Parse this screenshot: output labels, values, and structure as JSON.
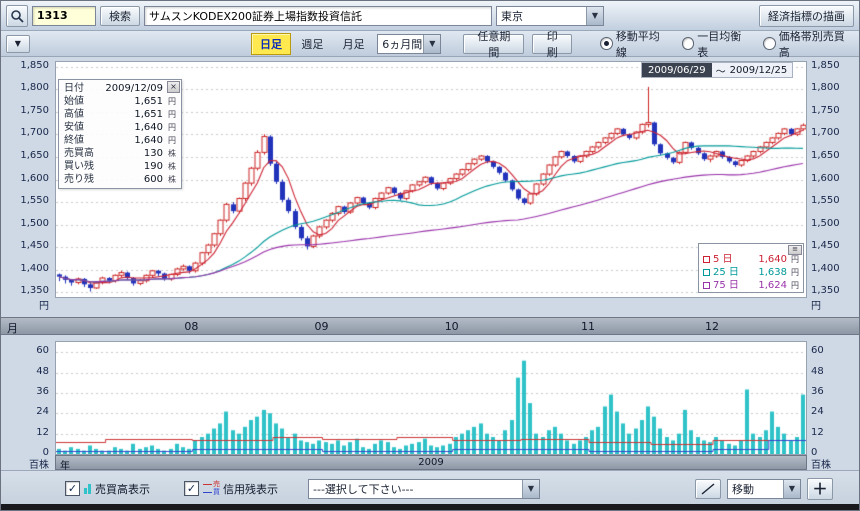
{
  "toolbar1": {
    "code_value": "1313",
    "search_label": "検索",
    "name_value": "サムスンKODEX200証券上場指数投資信託",
    "market_value": "東京",
    "econ_button_label": "経済指標の描画"
  },
  "toolbar2": {
    "tabs": [
      {
        "label": "日足",
        "selected": true
      },
      {
        "label": "週足",
        "selected": false
      },
      {
        "label": "月足",
        "selected": false
      }
    ],
    "period_value": "6ヵ月間",
    "range_button_label": "任意期間",
    "print_button_label": "印刷",
    "radios": [
      {
        "label": "移動平均線",
        "selected": true
      },
      {
        "label": "一目均衡表",
        "selected": false
      },
      {
        "label": "価格帯別売買高",
        "selected": false
      }
    ]
  },
  "chart_header": {
    "from": "2009/06/29",
    "separator": "～",
    "to": "2009/12/25"
  },
  "info_box": {
    "rows": [
      {
        "label": "日付",
        "value": "2009/12/09",
        "unit": ""
      },
      {
        "label": "始値",
        "value": "1,651",
        "unit": "円"
      },
      {
        "label": "高値",
        "value": "1,651",
        "unit": "円"
      },
      {
        "label": "安値",
        "value": "1,640",
        "unit": "円"
      },
      {
        "label": "終値",
        "value": "1,640",
        "unit": "円"
      },
      {
        "label": "売買高",
        "value": "130",
        "unit": "株"
      },
      {
        "label": "買い残",
        "value": "190",
        "unit": "株"
      },
      {
        "label": "売り残",
        "value": "600",
        "unit": "株"
      }
    ]
  },
  "ma_legend": {
    "rows": [
      {
        "label": "5 日",
        "value": "1,640",
        "unit": "円",
        "color": "#cc2233"
      },
      {
        "label": "25 日",
        "value": "1,638",
        "unit": "円",
        "color": "#009999"
      },
      {
        "label": "75 日",
        "value": "1,624",
        "unit": "円",
        "color": "#9933aa"
      }
    ]
  },
  "price_axis": {
    "labels": [
      "1,850",
      "1,800",
      "1,750",
      "1,700",
      "1,650",
      "1,600",
      "1,550",
      "1,500",
      "1,450",
      "1,400",
      "1,350"
    ],
    "values": [
      1850,
      1800,
      1750,
      1700,
      1650,
      1600,
      1550,
      1500,
      1450,
      1400,
      1350
    ],
    "unit": "円"
  },
  "volume_axis": {
    "labels": [
      "60",
      "48",
      "36",
      "24",
      "12",
      "0"
    ],
    "values": [
      60,
      48,
      36,
      24,
      12,
      0
    ],
    "unit": "百株"
  },
  "month_bar": {
    "left_label": "月"
  },
  "year_bar": {
    "left_label": "年",
    "year": "2009"
  },
  "bottom_bar": {
    "volume_checkbox_label": "売買高表示",
    "margin_checkbox_label": "信用残表示",
    "margin_icon_sell": "売",
    "margin_icon_buy": "買",
    "select_value": "---選択して下さい---",
    "move_select_value": "移動",
    "plus_button_label": "＋",
    "volume_checked": true,
    "margin_checked": true
  },
  "chart_data": {
    "type": "candlestick",
    "period": "daily",
    "title": "サムスンKODEX200証券上場指数投資信託 日足",
    "date_range": [
      "2009/06/29",
      "2009/12/25"
    ],
    "price_range": [
      1340,
      1860
    ],
    "price_gridline_step": 50,
    "volume_max": 66,
    "volume_gridline_step": 12,
    "colors": {
      "up_fill": "#ffffff",
      "up_stroke": "#cc2222",
      "down": "#2233bb",
      "volume": "#2fc2c8",
      "ma5": "#cc2233",
      "ma25": "#009999",
      "ma75": "#9933aa",
      "grid": "#c9c9c9"
    },
    "ma_periods": [
      5,
      25,
      75
    ],
    "ma_last_values": {
      "ma5": 1640,
      "ma25": 1638,
      "ma75": 1624
    },
    "candle_format": "[open, high, low, close, volume_hundreds]",
    "candles": [
      [
        1390,
        1392,
        1375,
        1385,
        3
      ],
      [
        1385,
        1388,
        1370,
        1378,
        2
      ],
      [
        1378,
        1380,
        1365,
        1372,
        4
      ],
      [
        1372,
        1383,
        1368,
        1380,
        3
      ],
      [
        1380,
        1382,
        1362,
        1368,
        2
      ],
      [
        1368,
        1372,
        1352,
        1360,
        5
      ],
      [
        1360,
        1375,
        1358,
        1372,
        3
      ],
      [
        1372,
        1385,
        1368,
        1382,
        2
      ],
      [
        1382,
        1384,
        1370,
        1376,
        2
      ],
      [
        1376,
        1390,
        1372,
        1388,
        4
      ],
      [
        1388,
        1398,
        1384,
        1394,
        3
      ],
      [
        1394,
        1396,
        1378,
        1382,
        2
      ],
      [
        1382,
        1384,
        1365,
        1370,
        6
      ],
      [
        1370,
        1380,
        1366,
        1376,
        3
      ],
      [
        1376,
        1390,
        1372,
        1388,
        4
      ],
      [
        1388,
        1400,
        1384,
        1398,
        5
      ],
      [
        1398,
        1400,
        1386,
        1392,
        3
      ],
      [
        1392,
        1394,
        1376,
        1380,
        2
      ],
      [
        1380,
        1392,
        1376,
        1390,
        3
      ],
      [
        1390,
        1405,
        1386,
        1402,
        6
      ],
      [
        1402,
        1412,
        1398,
        1408,
        4
      ],
      [
        1408,
        1410,
        1392,
        1398,
        3
      ],
      [
        1398,
        1418,
        1394,
        1415,
        8
      ],
      [
        1415,
        1440,
        1410,
        1438,
        10
      ],
      [
        1438,
        1458,
        1432,
        1455,
        12
      ],
      [
        1455,
        1482,
        1450,
        1480,
        15
      ],
      [
        1480,
        1512,
        1475,
        1510,
        18
      ],
      [
        1510,
        1548,
        1505,
        1545,
        25
      ],
      [
        1545,
        1550,
        1525,
        1530,
        14
      ],
      [
        1530,
        1560,
        1525,
        1558,
        12
      ],
      [
        1558,
        1595,
        1552,
        1592,
        16
      ],
      [
        1592,
        1628,
        1586,
        1625,
        20
      ],
      [
        1625,
        1665,
        1620,
        1660,
        22
      ],
      [
        1660,
        1700,
        1655,
        1695,
        26
      ],
      [
        1695,
        1698,
        1630,
        1635,
        24
      ],
      [
        1635,
        1640,
        1590,
        1595,
        18
      ],
      [
        1595,
        1600,
        1550,
        1555,
        15
      ],
      [
        1555,
        1560,
        1525,
        1530,
        10
      ],
      [
        1530,
        1535,
        1490,
        1495,
        12
      ],
      [
        1495,
        1500,
        1465,
        1470,
        8
      ],
      [
        1470,
        1475,
        1445,
        1452,
        7
      ],
      [
        1452,
        1478,
        1448,
        1475,
        6
      ],
      [
        1475,
        1498,
        1470,
        1495,
        8
      ],
      [
        1495,
        1512,
        1490,
        1510,
        7
      ],
      [
        1510,
        1528,
        1505,
        1525,
        6
      ],
      [
        1525,
        1542,
        1520,
        1540,
        8
      ],
      [
        1540,
        1542,
        1524,
        1528,
        5
      ],
      [
        1528,
        1550,
        1524,
        1548,
        7
      ],
      [
        1548,
        1562,
        1544,
        1560,
        9
      ],
      [
        1560,
        1562,
        1544,
        1548,
        4
      ],
      [
        1548,
        1550,
        1534,
        1538,
        3
      ],
      [
        1538,
        1560,
        1534,
        1558,
        6
      ],
      [
        1558,
        1572,
        1554,
        1570,
        8
      ],
      [
        1570,
        1584,
        1566,
        1582,
        7
      ],
      [
        1582,
        1584,
        1566,
        1570,
        4
      ],
      [
        1570,
        1572,
        1554,
        1558,
        3
      ],
      [
        1558,
        1577,
        1554,
        1575,
        5
      ],
      [
        1575,
        1590,
        1571,
        1588,
        6
      ],
      [
        1588,
        1597,
        1584,
        1595,
        7
      ],
      [
        1595,
        1607,
        1591,
        1605,
        9
      ],
      [
        1605,
        1607,
        1588,
        1592,
        5
      ],
      [
        1592,
        1594,
        1576,
        1580,
        4
      ],
      [
        1580,
        1594,
        1576,
        1592,
        5
      ],
      [
        1592,
        1604,
        1588,
        1602,
        6
      ],
      [
        1602,
        1614,
        1598,
        1612,
        10
      ],
      [
        1612,
        1624,
        1608,
        1622,
        12
      ],
      [
        1622,
        1637,
        1618,
        1635,
        14
      ],
      [
        1635,
        1647,
        1631,
        1645,
        16
      ],
      [
        1645,
        1654,
        1641,
        1652,
        18
      ],
      [
        1652,
        1654,
        1636,
        1640,
        12
      ],
      [
        1640,
        1642,
        1624,
        1628,
        10
      ],
      [
        1628,
        1630,
        1611,
        1615,
        8
      ],
      [
        1615,
        1617,
        1594,
        1598,
        14
      ],
      [
        1598,
        1600,
        1574,
        1578,
        20
      ],
      [
        1578,
        1580,
        1554,
        1558,
        45
      ],
      [
        1558,
        1560,
        1544,
        1548,
        55
      ],
      [
        1548,
        1570,
        1544,
        1568,
        30
      ],
      [
        1568,
        1592,
        1564,
        1590,
        12
      ],
      [
        1590,
        1614,
        1586,
        1612,
        10
      ],
      [
        1612,
        1634,
        1608,
        1632,
        14
      ],
      [
        1632,
        1652,
        1628,
        1650,
        16
      ],
      [
        1650,
        1664,
        1646,
        1662,
        12
      ],
      [
        1662,
        1664,
        1648,
        1652,
        8
      ],
      [
        1652,
        1654,
        1636,
        1640,
        6
      ],
      [
        1640,
        1654,
        1636,
        1652,
        8
      ],
      [
        1652,
        1664,
        1648,
        1662,
        10
      ],
      [
        1662,
        1674,
        1658,
        1672,
        14
      ],
      [
        1672,
        1684,
        1668,
        1682,
        16
      ],
      [
        1682,
        1694,
        1678,
        1692,
        28
      ],
      [
        1692,
        1704,
        1688,
        1702,
        35
      ],
      [
        1702,
        1714,
        1698,
        1712,
        25
      ],
      [
        1712,
        1714,
        1696,
        1700,
        18
      ],
      [
        1700,
        1702,
        1688,
        1692,
        12
      ],
      [
        1692,
        1707,
        1688,
        1705,
        15
      ],
      [
        1705,
        1724,
        1701,
        1722,
        20
      ],
      [
        1722,
        1805,
        1715,
        1726,
        28
      ],
      [
        1726,
        1728,
        1674,
        1678,
        22
      ],
      [
        1678,
        1680,
        1654,
        1658,
        15
      ],
      [
        1658,
        1660,
        1644,
        1648,
        10
      ],
      [
        1648,
        1650,
        1634,
        1638,
        8
      ],
      [
        1638,
        1662,
        1634,
        1660,
        12
      ],
      [
        1660,
        1684,
        1656,
        1682,
        26
      ],
      [
        1682,
        1684,
        1666,
        1670,
        14
      ],
      [
        1670,
        1672,
        1654,
        1658,
        10
      ],
      [
        1658,
        1660,
        1641,
        1645,
        8
      ],
      [
        1645,
        1655,
        1638,
        1652,
        7
      ],
      [
        1652,
        1664,
        1648,
        1662,
        10
      ],
      [
        1662,
        1664,
        1646,
        1650,
        8
      ],
      [
        1650,
        1652,
        1636,
        1640,
        6
      ],
      [
        1640,
        1642,
        1628,
        1632,
        5
      ],
      [
        1632,
        1644,
        1628,
        1642,
        8
      ],
      [
        1642,
        1654,
        1638,
        1652,
        38
      ],
      [
        1652,
        1664,
        1648,
        1662,
        12
      ],
      [
        1662,
        1674,
        1658,
        1672,
        10
      ],
      [
        1672,
        1684,
        1668,
        1682,
        14
      ],
      [
        1682,
        1694,
        1678,
        1692,
        25
      ],
      [
        1692,
        1704,
        1688,
        1702,
        16
      ],
      [
        1702,
        1714,
        1698,
        1712,
        12
      ],
      [
        1712,
        1714,
        1696,
        1700,
        8
      ],
      [
        1700,
        1714,
        1696,
        1712,
        10
      ],
      [
        1712,
        1724,
        1708,
        1720,
        35
      ]
    ],
    "margin_lines": [
      {
        "name": "売り残",
        "color": "#cc3333",
        "segments": [
          [
            0,
            8,
            7
          ],
          [
            8,
            22,
            9
          ],
          [
            22,
            35,
            8
          ],
          [
            35,
            43,
            10
          ],
          [
            43,
            55,
            9
          ],
          [
            55,
            64,
            10
          ],
          [
            64,
            75,
            8
          ],
          [
            75,
            86,
            9
          ],
          [
            86,
            96,
            7
          ],
          [
            96,
            106,
            6
          ],
          [
            106,
            121,
            8
          ]
        ]
      },
      {
        "name": "買い残",
        "color": "#3344cc",
        "segments": [
          [
            0,
            22,
            2
          ],
          [
            22,
            43,
            3
          ],
          [
            43,
            64,
            2
          ],
          [
            64,
            86,
            3
          ],
          [
            86,
            106,
            2
          ],
          [
            106,
            115,
            3
          ],
          [
            115,
            121,
            8
          ]
        ]
      }
    ],
    "month_starts": [
      {
        "label": "08",
        "index": 22
      },
      {
        "label": "09",
        "index": 43
      },
      {
        "label": "10",
        "index": 64
      },
      {
        "label": "11",
        "index": 86
      },
      {
        "label": "12",
        "index": 106
      }
    ]
  }
}
